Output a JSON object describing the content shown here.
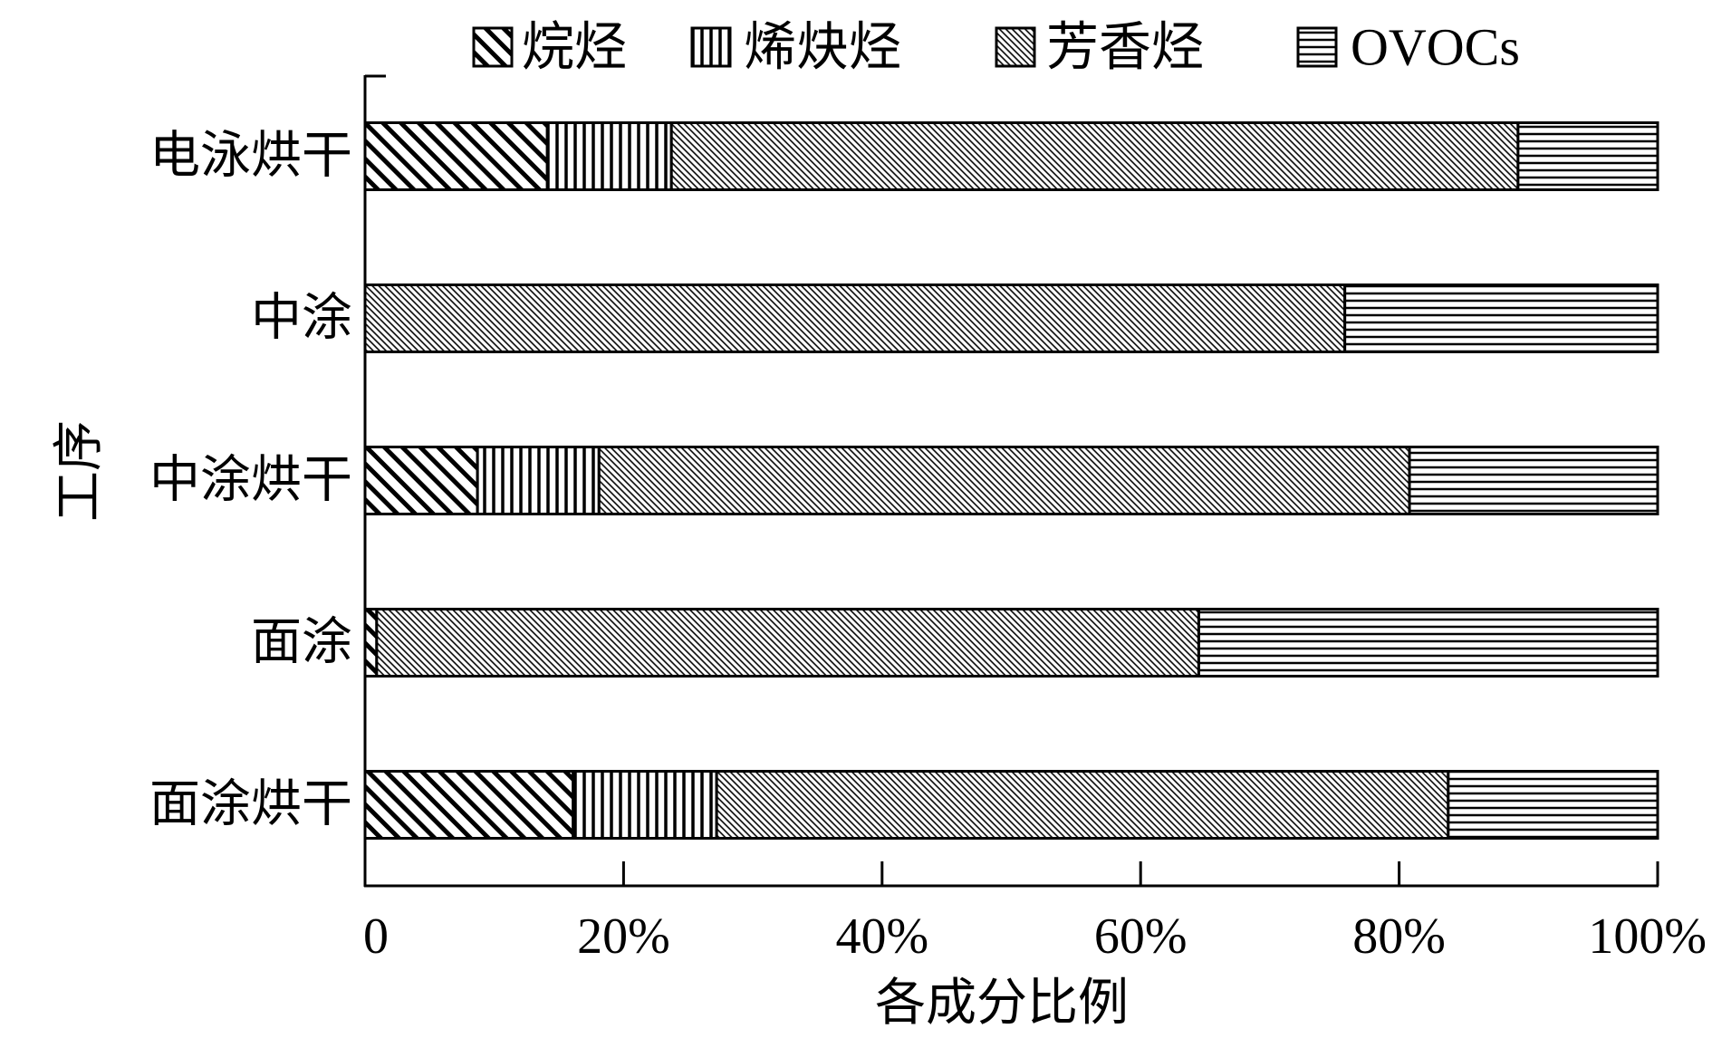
{
  "chart_data": {
    "type": "bar",
    "orientation": "horizontal",
    "stacked": true,
    "categories": [
      "电泳烘干",
      "中涂",
      "中涂烘干",
      "面涂",
      "面涂烘干"
    ],
    "series": [
      {
        "name": "烷烃",
        "fill": "pattern-diagonal-wide",
        "values": [
          14.1,
          0,
          8.7,
          0.9,
          16.1
        ]
      },
      {
        "name": "烯炔烃",
        "fill": "pattern-vertical",
        "values": [
          9.6,
          0,
          9.4,
          0,
          11.1
        ]
      },
      {
        "name": "芳香烃",
        "fill": "pattern-diagonal-dense",
        "values": [
          65.5,
          75.8,
          62.7,
          63.6,
          56.6
        ]
      },
      {
        "name": "OVOCs",
        "fill": "pattern-horizontal",
        "values": [
          10.8,
          24.2,
          19.2,
          35.5,
          16.2
        ]
      }
    ],
    "xlabel": "各成分比例",
    "ylabel": "工序",
    "xlim": [
      0,
      100
    ],
    "xticks": [
      0,
      20,
      40,
      60,
      80,
      100
    ],
    "xtick_labels": [
      "0",
      "20%",
      "40%",
      "60%",
      "80%",
      "100%"
    ],
    "legend_position": "top",
    "grid": false
  }
}
